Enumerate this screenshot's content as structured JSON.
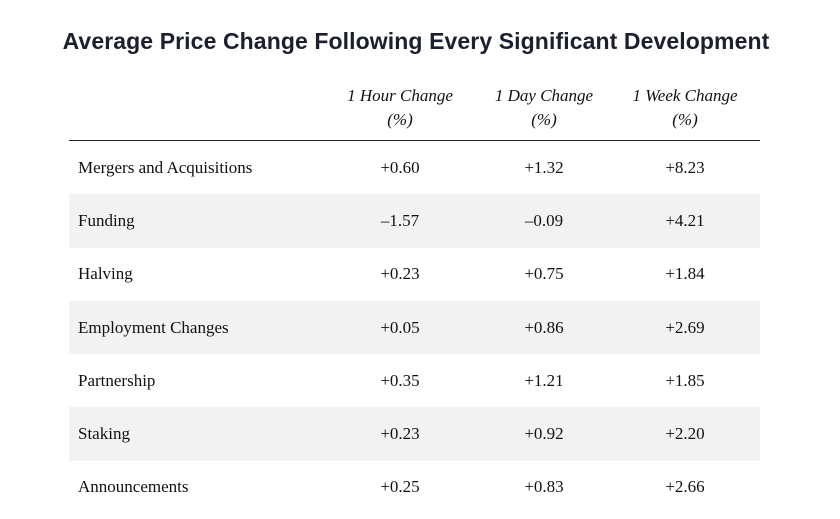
{
  "title": "Average Price Change Following Every Significant Development",
  "columns": [
    {
      "line1": "1 Hour Change",
      "line2": "(%)"
    },
    {
      "line1": "1 Day Change",
      "line2": "(%)"
    },
    {
      "line1": "1 Week Change",
      "line2": "(%)"
    }
  ],
  "rows": [
    {
      "label": "Mergers and Acquisitions",
      "values": [
        "+0.60",
        "+1.32",
        "+8.23"
      ]
    },
    {
      "label": "Funding",
      "values": [
        "–1.57",
        "–0.09",
        "+4.21"
      ]
    },
    {
      "label": "Halving",
      "values": [
        "+0.23",
        "+0.75",
        "+1.84"
      ]
    },
    {
      "label": "Employment Changes",
      "values": [
        "+0.05",
        "+0.86",
        "+2.69"
      ]
    },
    {
      "label": "Partnership",
      "values": [
        "+0.35",
        "+1.21",
        "+1.85"
      ]
    },
    {
      "label": "Staking",
      "values": [
        "+0.23",
        "+0.92",
        "+2.20"
      ]
    },
    {
      "label": "Announcements",
      "values": [
        "+0.25",
        "+0.83",
        "+2.66"
      ]
    }
  ]
}
